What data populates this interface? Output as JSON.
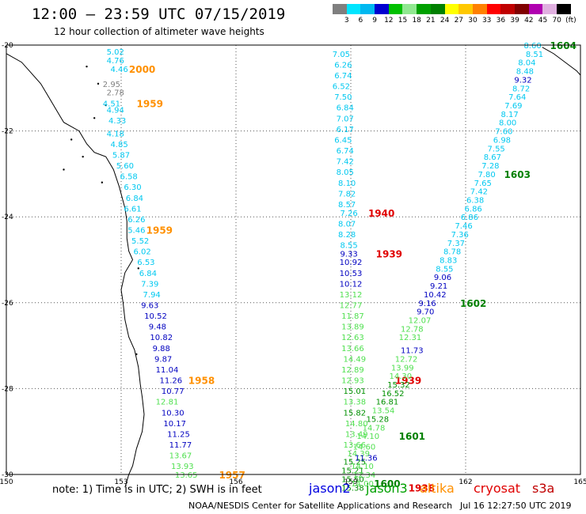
{
  "header": {
    "title": "12:00 – 23:59 UTC 07/15/2019",
    "subtitle": "12 hour collection of altimeter wave heights"
  },
  "color_scale": {
    "labels": [
      "3",
      "6",
      "9",
      "12",
      "15",
      "18",
      "21",
      "24",
      "27",
      "30",
      "33",
      "36",
      "39",
      "42",
      "45",
      "70",
      "(ft)"
    ],
    "colors": [
      "#7f7f7f",
      "#00e5ff",
      "#00b8f0",
      "#0000d0",
      "#00c000",
      "#90e890",
      "#00a000",
      "#008000",
      "#ffff00",
      "#ffc800",
      "#ff8000",
      "#ff0000",
      "#c00000",
      "#800000",
      "#b000b0",
      "#e0b0e0",
      "#000000"
    ]
  },
  "axes": {
    "lon_labels": [
      "150",
      "153",
      "156",
      "159",
      "162",
      "165"
    ],
    "lon_values": [
      150,
      153,
      156,
      159,
      162,
      165
    ],
    "lat_labels": [
      "-20",
      "-22",
      "-24",
      "-26",
      "-28",
      "-30"
    ],
    "lat_values": [
      -20,
      -22,
      -24,
      -26,
      -28,
      -30
    ]
  },
  "passes": [
    {
      "time": "2000",
      "time_color": "#ff9000",
      "time_lat": -20.55,
      "time_lon": 153.55,
      "values": [
        {
          "v": "5.02",
          "lat": -20.15,
          "lon": 152.85,
          "c": "#00c8f0"
        },
        {
          "v": "4.76",
          "lat": -20.35,
          "lon": 152.85,
          "c": "#00c8f0"
        },
        {
          "v": "4.46",
          "lat": -20.55,
          "lon": 152.95,
          "c": "#00c8f0"
        },
        {
          "v": "2.95",
          "lat": -20.9,
          "lon": 152.75,
          "c": "#808080"
        },
        {
          "v": "2.78",
          "lat": -21.1,
          "lon": 152.85,
          "c": "#808080"
        }
      ]
    },
    {
      "time": "1959",
      "time_color": "#ff9000",
      "time_lat": -21.35,
      "time_lon": 153.75,
      "values": [
        {
          "v": "4.51",
          "lat": -21.35,
          "lon": 152.75,
          "c": "#00c8f0"
        },
        {
          "v": "4.94",
          "lat": -21.5,
          "lon": 152.85,
          "c": "#00c8f0"
        },
        {
          "v": "4.33",
          "lat": -21.75,
          "lon": 152.9,
          "c": "#00c8f0"
        },
        {
          "v": "4.18",
          "lat": -22.05,
          "lon": 152.85,
          "c": "#00c8f0"
        },
        {
          "v": "4.85",
          "lat": -22.3,
          "lon": 152.95,
          "c": "#00c8f0"
        },
        {
          "v": "5.87",
          "lat": -22.55,
          "lon": 153.0,
          "c": "#00c8f0"
        },
        {
          "v": "5.60",
          "lat": -22.8,
          "lon": 153.1,
          "c": "#00c8f0"
        },
        {
          "v": "6.58",
          "lat": -23.05,
          "lon": 153.2,
          "c": "#00c8f0"
        },
        {
          "v": "6.30",
          "lat": -23.3,
          "lon": 153.3,
          "c": "#00c8f0"
        },
        {
          "v": "6.84",
          "lat": -23.55,
          "lon": 153.35,
          "c": "#00c8f0"
        },
        {
          "v": "6.61",
          "lat": -23.8,
          "lon": 153.3,
          "c": "#00c8f0"
        },
        {
          "v": "6.26",
          "lat": -24.05,
          "lon": 153.4,
          "c": "#00c8f0"
        }
      ]
    },
    {
      "time": "1959",
      "time_color": "#ff9000",
      "time_lat": -24.3,
      "time_lon": 154.0,
      "values": [
        {
          "v": "5.46",
          "lat": -24.3,
          "lon": 153.4,
          "c": "#00c8f0"
        },
        {
          "v": "5.52",
          "lat": -24.55,
          "lon": 153.5,
          "c": "#00c8f0"
        },
        {
          "v": "6.02",
          "lat": -24.8,
          "lon": 153.55,
          "c": "#00c8f0"
        },
        {
          "v": "6.53",
          "lat": -25.05,
          "lon": 153.65,
          "c": "#00c8f0"
        },
        {
          "v": "6.84",
          "lat": -25.3,
          "lon": 153.7,
          "c": "#00c8f0"
        },
        {
          "v": "7.39",
          "lat": -25.55,
          "lon": 153.75,
          "c": "#00c8f0"
        },
        {
          "v": "7.94",
          "lat": -25.8,
          "lon": 153.8,
          "c": "#00c8f0"
        },
        {
          "v": "9.63",
          "lat": -26.05,
          "lon": 153.75,
          "c": "#0000c0"
        },
        {
          "v": "10.52",
          "lat": -26.3,
          "lon": 153.9,
          "c": "#0000c0"
        },
        {
          "v": "9.48",
          "lat": -26.55,
          "lon": 153.95,
          "c": "#0000c0"
        },
        {
          "v": "10.82",
          "lat": -26.8,
          "lon": 154.05,
          "c": "#0000c0"
        },
        {
          "v": "9.88",
          "lat": -27.05,
          "lon": 154.05,
          "c": "#0000c0"
        },
        {
          "v": "9.87",
          "lat": -27.3,
          "lon": 154.1,
          "c": "#0000c0"
        },
        {
          "v": "11.04",
          "lat": -27.55,
          "lon": 154.2,
          "c": "#0000c0"
        },
        {
          "v": "11.26",
          "lat": -27.8,
          "lon": 154.3,
          "c": "#0000c0"
        },
        {
          "v": "10.77",
          "lat": -28.05,
          "lon": 154.35,
          "c": "#0000c0"
        }
      ]
    },
    {
      "time": "1958",
      "time_color": "#ff9000",
      "time_lat": -27.8,
      "time_lon": 155.1,
      "values": [
        {
          "v": "12.81",
          "lat": -28.3,
          "lon": 154.2,
          "c": "#50e050"
        },
        {
          "v": "10.30",
          "lat": -28.55,
          "lon": 154.35,
          "c": "#0000c0"
        },
        {
          "v": "10.17",
          "lat": -28.8,
          "lon": 154.4,
          "c": "#0000c0"
        },
        {
          "v": "11.25",
          "lat": -29.05,
          "lon": 154.5,
          "c": "#0000c0"
        },
        {
          "v": "11.77",
          "lat": -29.3,
          "lon": 154.55,
          "c": "#0000c0"
        },
        {
          "v": "13.67",
          "lat": -29.55,
          "lon": 154.55,
          "c": "#50e050"
        },
        {
          "v": "13.93",
          "lat": -29.8,
          "lon": 154.6,
          "c": "#50e050"
        },
        {
          "v": "13.65",
          "lat": -30.0,
          "lon": 154.7,
          "c": "#50e050"
        }
      ]
    },
    {
      "time": "1957",
      "time_color": "#ff9000",
      "time_lat": -30.0,
      "time_lon": 155.9,
      "values": []
    },
    {
      "time": "1940",
      "time_color": "#e00000",
      "time_lat": -23.9,
      "time_lon": 159.8,
      "values": [
        {
          "v": "7.05",
          "lat": -20.2,
          "lon": 158.75,
          "c": "#00c8f0"
        },
        {
          "v": "6.26",
          "lat": -20.45,
          "lon": 158.8,
          "c": "#00c8f0"
        },
        {
          "v": "6.74",
          "lat": -20.7,
          "lon": 158.8,
          "c": "#00c8f0"
        },
        {
          "v": "6.52",
          "lat": -20.95,
          "lon": 158.75,
          "c": "#00c8f0"
        },
        {
          "v": "7.50",
          "lat": -21.2,
          "lon": 158.8,
          "c": "#00c8f0"
        },
        {
          "v": "6.84",
          "lat": -21.45,
          "lon": 158.85,
          "c": "#00c8f0"
        },
        {
          "v": "7.07",
          "lat": -21.7,
          "lon": 158.85,
          "c": "#00c8f0"
        },
        {
          "v": "6.17",
          "lat": -21.95,
          "lon": 158.85,
          "c": "#00c8f0"
        },
        {
          "v": "6.45",
          "lat": -22.2,
          "lon": 158.8,
          "c": "#00c8f0"
        },
        {
          "v": "6.74",
          "lat": -22.45,
          "lon": 158.85,
          "c": "#00c8f0"
        },
        {
          "v": "7.42",
          "lat": -22.7,
          "lon": 158.85,
          "c": "#00c8f0"
        },
        {
          "v": "8.05",
          "lat": -22.95,
          "lon": 158.85,
          "c": "#00c8f0"
        },
        {
          "v": "8.10",
          "lat": -23.2,
          "lon": 158.9,
          "c": "#00c8f0"
        },
        {
          "v": "7.82",
          "lat": -23.45,
          "lon": 158.9,
          "c": "#00c8f0"
        },
        {
          "v": "8.57",
          "lat": -23.7,
          "lon": 158.9,
          "c": "#00c8f0"
        },
        {
          "v": "7.26",
          "lat": -23.9,
          "lon": 158.95,
          "c": "#00c8f0"
        },
        {
          "v": "8.07",
          "lat": -24.15,
          "lon": 158.9,
          "c": "#00c8f0"
        },
        {
          "v": "8.28",
          "lat": -24.4,
          "lon": 158.9,
          "c": "#00c8f0"
        },
        {
          "v": "8.55",
          "lat": -24.65,
          "lon": 158.95,
          "c": "#00c8f0"
        }
      ]
    },
    {
      "time": "1939",
      "time_color": "#e00000",
      "time_lat": -24.85,
      "time_lon": 160.0,
      "values": [
        {
          "v": "9.33",
          "lat": -24.85,
          "lon": 158.95,
          "c": "#0000c0"
        },
        {
          "v": "10.92",
          "lat": -25.05,
          "lon": 159.0,
          "c": "#0000c0"
        },
        {
          "v": "10.53",
          "lat": -25.3,
          "lon": 159.0,
          "c": "#0000c0"
        },
        {
          "v": "10.12",
          "lat": -25.55,
          "lon": 159.0,
          "c": "#0000c0"
        },
        {
          "v": "13.12",
          "lat": -25.8,
          "lon": 159.0,
          "c": "#50e050"
        },
        {
          "v": "12.77",
          "lat": -26.05,
          "lon": 159.0,
          "c": "#50e050"
        },
        {
          "v": "11.87",
          "lat": -26.3,
          "lon": 159.05,
          "c": "#50e050"
        },
        {
          "v": "13.89",
          "lat": -26.55,
          "lon": 159.05,
          "c": "#50e050"
        },
        {
          "v": "12.63",
          "lat": -26.8,
          "lon": 159.05,
          "c": "#50e050"
        },
        {
          "v": "13.66",
          "lat": -27.05,
          "lon": 159.05,
          "c": "#50e050"
        },
        {
          "v": "14.49",
          "lat": -27.3,
          "lon": 159.1,
          "c": "#50e050"
        },
        {
          "v": "12.89",
          "lat": -27.55,
          "lon": 159.05,
          "c": "#50e050"
        },
        {
          "v": "12.93",
          "lat": -27.8,
          "lon": 159.05,
          "c": "#50e050"
        }
      ]
    },
    {
      "time": "1939",
      "time_color": "#e00000",
      "time_lat": -27.8,
      "time_lon": 160.5,
      "values": [
        {
          "v": "15.01",
          "lat": -28.05,
          "lon": 159.1,
          "c": "#009000"
        },
        {
          "v": "13.38",
          "lat": -28.3,
          "lon": 159.1,
          "c": "#50e050"
        },
        {
          "v": "15.82",
          "lat": -28.55,
          "lon": 159.1,
          "c": "#009000"
        },
        {
          "v": "14.80",
          "lat": -28.8,
          "lon": 159.15,
          "c": "#50e050"
        },
        {
          "v": "13.49",
          "lat": -29.05,
          "lon": 159.15,
          "c": "#50e050"
        },
        {
          "v": "13.66",
          "lat": -29.3,
          "lon": 159.1,
          "c": "#50e050"
        },
        {
          "v": "14.39",
          "lat": -29.5,
          "lon": 159.2,
          "c": "#50e050"
        },
        {
          "v": "15.25",
          "lat": -29.7,
          "lon": 159.1,
          "c": "#009000"
        },
        {
          "v": "15.21",
          "lat": -29.9,
          "lon": 159.05,
          "c": "#009000"
        },
        {
          "v": "15.50",
          "lat": -30.1,
          "lon": 159.05,
          "c": "#009000"
        },
        {
          "v": "15.38",
          "lat": -30.3,
          "lon": 159.05,
          "c": "#009000"
        }
      ]
    },
    {
      "time": "1938",
      "time_color": "#e00000",
      "time_lat": -30.3,
      "time_lon": 160.85,
      "values": []
    },
    {
      "time": "1604",
      "time_color": "#008000",
      "time_lat": -20.0,
      "time_lon": 164.55,
      "values": [
        {
          "v": "8.60",
          "lat": -20.0,
          "lon": 163.75,
          "c": "#00c8f0"
        },
        {
          "v": "8.51",
          "lat": -20.2,
          "lon": 163.8,
          "c": "#00c8f0"
        },
        {
          "v": "8.04",
          "lat": -20.4,
          "lon": 163.6,
          "c": "#00c8f0"
        },
        {
          "v": "8.48",
          "lat": -20.6,
          "lon": 163.55,
          "c": "#00c8f0"
        },
        {
          "v": "9.32",
          "lat": -20.8,
          "lon": 163.5,
          "c": "#0000c0"
        },
        {
          "v": "8.72",
          "lat": -21.0,
          "lon": 163.45,
          "c": "#00c8f0"
        },
        {
          "v": "7.64",
          "lat": -21.2,
          "lon": 163.35,
          "c": "#00c8f0"
        },
        {
          "v": "7.69",
          "lat": -21.4,
          "lon": 163.25,
          "c": "#00c8f0"
        },
        {
          "v": "8.17",
          "lat": -21.6,
          "lon": 163.15,
          "c": "#00c8f0"
        },
        {
          "v": "8.00",
          "lat": -21.8,
          "lon": 163.1,
          "c": "#00c8f0"
        },
        {
          "v": "7.60",
          "lat": -22.0,
          "lon": 163.0,
          "c": "#00c8f0"
        },
        {
          "v": "6.98",
          "lat": -22.2,
          "lon": 162.95,
          "c": "#00c8f0"
        },
        {
          "v": "7.55",
          "lat": -22.4,
          "lon": 162.8,
          "c": "#00c8f0"
        },
        {
          "v": "8.67",
          "lat": -22.6,
          "lon": 162.7,
          "c": "#00c8f0"
        },
        {
          "v": "7.28",
          "lat": -22.8,
          "lon": 162.65,
          "c": "#00c8f0"
        }
      ]
    },
    {
      "time": "1603",
      "time_color": "#008000",
      "time_lat": -23.0,
      "time_lon": 163.35,
      "values": [
        {
          "v": "7.80",
          "lat": -23.0,
          "lon": 162.55,
          "c": "#00c8f0"
        },
        {
          "v": "7.65",
          "lat": -23.2,
          "lon": 162.45,
          "c": "#00c8f0"
        },
        {
          "v": "7.42",
          "lat": -23.4,
          "lon": 162.35,
          "c": "#00c8f0"
        },
        {
          "v": "6.38",
          "lat": -23.6,
          "lon": 162.25,
          "c": "#00c8f0"
        },
        {
          "v": "6.86",
          "lat": -23.8,
          "lon": 162.2,
          "c": "#00c8f0"
        },
        {
          "v": "6.86",
          "lat": -24.0,
          "lon": 162.1,
          "c": "#00c8f0"
        },
        {
          "v": "7.46",
          "lat": -24.2,
          "lon": 161.95,
          "c": "#00c8f0"
        },
        {
          "v": "7.36",
          "lat": -24.4,
          "lon": 161.85,
          "c": "#00c8f0"
        },
        {
          "v": "7.37",
          "lat": -24.6,
          "lon": 161.75,
          "c": "#00c8f0"
        },
        {
          "v": "8.78",
          "lat": -24.8,
          "lon": 161.65,
          "c": "#00c8f0"
        },
        {
          "v": "8.83",
          "lat": -25.0,
          "lon": 161.55,
          "c": "#00c8f0"
        },
        {
          "v": "8.55",
          "lat": -25.2,
          "lon": 161.45,
          "c": "#00c8f0"
        },
        {
          "v": "9.06",
          "lat": -25.4,
          "lon": 161.4,
          "c": "#0000c0"
        },
        {
          "v": "9.21",
          "lat": -25.6,
          "lon": 161.3,
          "c": "#0000c0"
        },
        {
          "v": "10.42",
          "lat": -25.8,
          "lon": 161.2,
          "c": "#0000c0"
        },
        {
          "v": "9.16",
          "lat": -26.0,
          "lon": 161.0,
          "c": "#0000c0"
        }
      ]
    },
    {
      "time": "1602",
      "time_color": "#008000",
      "time_lat": -26.0,
      "time_lon": 162.2,
      "values": [
        {
          "v": "9.70",
          "lat": -26.2,
          "lon": 160.95,
          "c": "#0000c0"
        },
        {
          "v": "12.07",
          "lat": -26.4,
          "lon": 160.8,
          "c": "#50e050"
        },
        {
          "v": "12.78",
          "lat": -26.6,
          "lon": 160.6,
          "c": "#50e050"
        },
        {
          "v": "12.31",
          "lat": -26.8,
          "lon": 160.55,
          "c": "#50e050"
        },
        {
          "v": "11.73",
          "lat": -27.1,
          "lon": 160.6,
          "c": "#0000c0"
        },
        {
          "v": "12.72",
          "lat": -27.3,
          "lon": 160.45,
          "c": "#50e050"
        },
        {
          "v": "13.99",
          "lat": -27.5,
          "lon": 160.35,
          "c": "#50e050"
        },
        {
          "v": "14.30",
          "lat": -27.7,
          "lon": 160.3,
          "c": "#50e050"
        },
        {
          "v": "15.32",
          "lat": -27.9,
          "lon": 160.25,
          "c": "#009000"
        },
        {
          "v": "16.52",
          "lat": -28.1,
          "lon": 160.1,
          "c": "#009000"
        },
        {
          "v": "16.81",
          "lat": -28.3,
          "lon": 159.95,
          "c": "#009000"
        },
        {
          "v": "13.54",
          "lat": -28.5,
          "lon": 159.85,
          "c": "#50e050"
        },
        {
          "v": "15.28",
          "lat": -28.7,
          "lon": 159.7,
          "c": "#009000"
        },
        {
          "v": "14.78",
          "lat": -28.9,
          "lon": 159.6,
          "c": "#50e050"
        }
      ]
    },
    {
      "time": "1601",
      "time_color": "#008000",
      "time_lat": -29.1,
      "time_lon": 160.6,
      "values": [
        {
          "v": "14.10",
          "lat": -29.1,
          "lon": 159.45,
          "c": "#50e050"
        },
        {
          "v": "14.60",
          "lat": -29.35,
          "lon": 159.35,
          "c": "#50e050"
        },
        {
          "v": "11.36",
          "lat": -29.6,
          "lon": 159.4,
          "c": "#0000c0"
        },
        {
          "v": "14.10",
          "lat": -29.8,
          "lon": 159.3,
          "c": "#50e050"
        },
        {
          "v": "12.34",
          "lat": -30.0,
          "lon": 159.35,
          "c": "#50e050"
        },
        {
          "v": "14.00",
          "lat": -30.2,
          "lon": 159.3,
          "c": "#50e050"
        }
      ]
    },
    {
      "time": "1600",
      "time_color": "#008000",
      "time_lat": -30.2,
      "time_lon": 159.95,
      "values": []
    }
  ],
  "footer": {
    "note": "note: 1) Time is in UTC; 2) SWH is in feet",
    "missions": [
      {
        "name": "jason2",
        "color": "#0000e0"
      },
      {
        "name": "jason3",
        "color": "#00a000"
      },
      {
        "name": "altika",
        "color": "#ff9000"
      },
      {
        "name": "cryosat",
        "color": "#e00000"
      },
      {
        "name": "s3a",
        "color": "#c00000"
      }
    ],
    "credit": "NOAA/NESDIS Center for Satellite Applications and Research",
    "timestamp": "Jul 16 12:27:50 UTC 2019"
  }
}
